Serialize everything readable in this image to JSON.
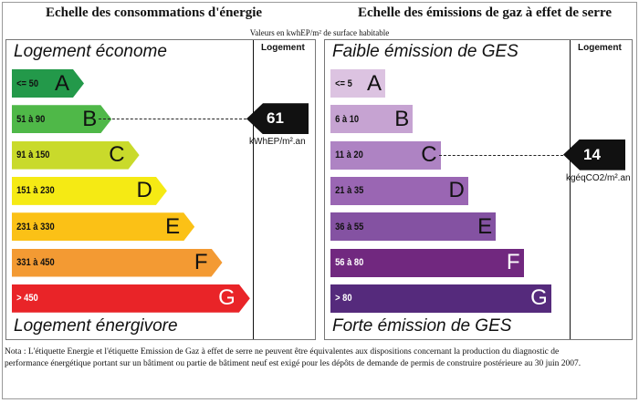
{
  "subtitle": "Valeurs en kwhEP/m² de surface habitable",
  "energy": {
    "heading": "Echelle des consommations d'énergie",
    "column_label": "Logement",
    "top_label": "Logement économe",
    "bottom_label": "Logement énergivore",
    "classes": [
      {
        "range": "<= 50",
        "letter": "A",
        "color": "#23994a"
      },
      {
        "range": "51 à 90",
        "letter": "B",
        "color": "#4fb848"
      },
      {
        "range": "91 à 150",
        "letter": "C",
        "color": "#c9da2b"
      },
      {
        "range": "151 à 230",
        "letter": "D",
        "color": "#f5ea14"
      },
      {
        "range": "231 à 330",
        "letter": "E",
        "color": "#fbc116"
      },
      {
        "range": "331 à 450",
        "letter": "F",
        "color": "#f39a33"
      },
      {
        "range": "> 450",
        "letter": "G",
        "color": "#e92428"
      }
    ],
    "value": "61",
    "unit": "kWhEP/m².an",
    "current_class": "B"
  },
  "ges": {
    "heading": "Echelle des émissions de gaz à effet de serre",
    "column_label": "Logement",
    "top_label": "Faible émission de GES",
    "bottom_label": "Forte émission de GES",
    "classes": [
      {
        "range": "<= 5",
        "letter": "A",
        "color": "#dcc3e1"
      },
      {
        "range": "6 à 10",
        "letter": "B",
        "color": "#c6a3d2"
      },
      {
        "range": "11 à 20",
        "letter": "C",
        "color": "#ae83c3"
      },
      {
        "range": "21 à 35",
        "letter": "D",
        "color": "#9a66b3"
      },
      {
        "range": "36 à 55",
        "letter": "E",
        "color": "#8452a2"
      },
      {
        "range": "56 à 80",
        "letter": "F",
        "color": "#71287f"
      },
      {
        "range": "> 80",
        "letter": "G",
        "color": "#552a7c"
      }
    ],
    "value": "14",
    "unit": "kgéqCO2/m².an",
    "current_class": "C"
  },
  "note": "Nota : L'étiquette Energie et l'étiquette Emission de Gaz à effet de serre ne peuvent être équivalentes aux dispositions   concernant la production du diagnostic de performance énergétique portant sur un bâtiment ou partie de bâtiment neuf est exigé pour les dépôts de demande de permis de construire postérieure au 30 juin 2007."
}
